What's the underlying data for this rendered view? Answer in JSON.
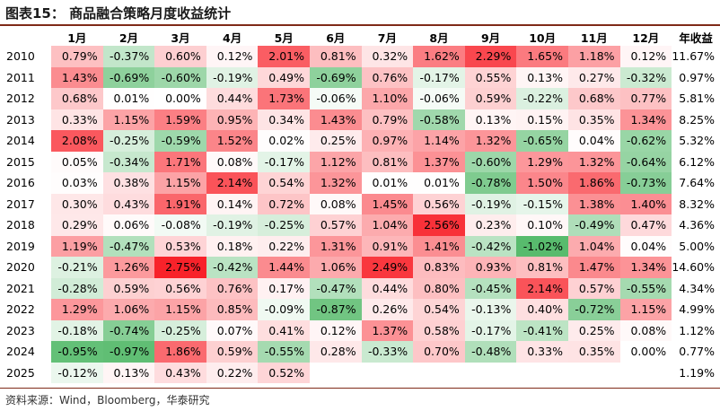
{
  "title": "图表15：  商品融合策略月度收益统计",
  "source": "资料来源：Wind，Bloomberg，华泰研究",
  "headers": [
    "1月",
    "2月",
    "3月",
    "4月",
    "5月",
    "6月",
    "7月",
    "8月",
    "9月",
    "10月",
    "11月",
    "12月",
    "年收益"
  ],
  "colors": {
    "negative": "#58bb6d",
    "neutral": "#ffffff",
    "positive": "#f8222a",
    "rule": "#7f2a18"
  },
  "rows": [
    {
      "year": "2010",
      "values": [
        "0.79%",
        "-0.37%",
        "0.60%",
        "0.12%",
        "2.01%",
        "0.81%",
        "0.32%",
        "1.62%",
        "2.29%",
        "1.65%",
        "1.18%",
        "0.12%"
      ],
      "annual": "11.67%"
    },
    {
      "year": "2011",
      "values": [
        "1.43%",
        "-0.69%",
        "-0.60%",
        "-0.19%",
        "0.49%",
        "-0.69%",
        "0.76%",
        "-0.17%",
        "0.55%",
        "0.13%",
        "0.27%",
        "-0.32%"
      ],
      "annual": "0.97%"
    },
    {
      "year": "2012",
      "values": [
        "0.68%",
        "0.01%",
        "0.00%",
        "0.44%",
        "1.73%",
        "-0.06%",
        "1.10%",
        "-0.06%",
        "0.59%",
        "-0.22%",
        "0.68%",
        "0.77%"
      ],
      "annual": "5.81%"
    },
    {
      "year": "2013",
      "values": [
        "0.33%",
        "1.15%",
        "1.59%",
        "0.95%",
        "0.34%",
        "1.43%",
        "0.79%",
        "-0.58%",
        "0.13%",
        "0.15%",
        "0.35%",
        "1.34%"
      ],
      "annual": "8.25%"
    },
    {
      "year": "2014",
      "values": [
        "2.08%",
        "-0.25%",
        "-0.59%",
        "1.52%",
        "0.02%",
        "0.25%",
        "0.97%",
        "1.14%",
        "1.32%",
        "-0.65%",
        "0.04%",
        "-0.62%"
      ],
      "annual": "5.32%"
    },
    {
      "year": "2015",
      "values": [
        "0.05%",
        "-0.34%",
        "1.71%",
        "0.08%",
        "-0.17%",
        "1.12%",
        "0.81%",
        "1.37%",
        "-0.60%",
        "1.29%",
        "1.32%",
        "-0.64%"
      ],
      "annual": "6.12%"
    },
    {
      "year": "2016",
      "values": [
        "0.03%",
        "0.38%",
        "1.15%",
        "2.14%",
        "0.54%",
        "1.32%",
        "0.01%",
        "0.01%",
        "-0.78%",
        "1.50%",
        "1.86%",
        "-0.73%"
      ],
      "annual": "7.64%"
    },
    {
      "year": "2017",
      "values": [
        "0.30%",
        "0.43%",
        "1.91%",
        "0.14%",
        "0.72%",
        "0.08%",
        "1.45%",
        "0.56%",
        "-0.19%",
        "-0.15%",
        "1.38%",
        "1.40%"
      ],
      "annual": "8.32%"
    },
    {
      "year": "2018",
      "values": [
        "0.29%",
        "0.06%",
        "-0.08%",
        "-0.19%",
        "-0.25%",
        "0.57%",
        "1.04%",
        "2.56%",
        "0.23%",
        "0.10%",
        "-0.49%",
        "0.47%"
      ],
      "annual": "4.36%"
    },
    {
      "year": "2019",
      "values": [
        "1.19%",
        "-0.47%",
        "0.53%",
        "0.18%",
        "0.22%",
        "1.31%",
        "0.91%",
        "1.41%",
        "-0.42%",
        "-1.02%",
        "1.04%",
        "0.04%"
      ],
      "annual": "5.00%"
    },
    {
      "year": "2020",
      "values": [
        "-0.21%",
        "1.26%",
        "2.75%",
        "-0.42%",
        "1.44%",
        "1.06%",
        "2.49%",
        "0.83%",
        "0.93%",
        "0.81%",
        "1.47%",
        "1.34%"
      ],
      "annual": "14.60%"
    },
    {
      "year": "2021",
      "values": [
        "-0.28%",
        "0.59%",
        "0.56%",
        "0.76%",
        "0.17%",
        "-0.47%",
        "0.44%",
        "0.80%",
        "-0.45%",
        "2.14%",
        "0.57%",
        "-0.55%"
      ],
      "annual": "4.34%"
    },
    {
      "year": "2022",
      "values": [
        "1.29%",
        "1.06%",
        "1.15%",
        "0.85%",
        "-0.09%",
        "-0.87%",
        "0.26%",
        "0.54%",
        "-0.13%",
        "0.40%",
        "-0.72%",
        "1.15%"
      ],
      "annual": "4.99%"
    },
    {
      "year": "2023",
      "values": [
        "-0.18%",
        "-0.74%",
        "-0.25%",
        "0.07%",
        "0.41%",
        "0.12%",
        "1.37%",
        "0.58%",
        "-0.17%",
        "-0.41%",
        "0.25%",
        "0.08%"
      ],
      "annual": "1.12%"
    },
    {
      "year": "2024",
      "values": [
        "-0.95%",
        "-0.97%",
        "1.86%",
        "0.59%",
        "-0.55%",
        "0.28%",
        "-0.33%",
        "0.70%",
        "-0.48%",
        "0.33%",
        "0.35%",
        "0.00%"
      ],
      "annual": "0.77%"
    },
    {
      "year": "2025",
      "values": [
        "-0.12%",
        "0.13%",
        "0.43%",
        "0.22%",
        "0.52%",
        "",
        "",
        "",
        "",
        "",
        "",
        ""
      ],
      "annual": "1.19%"
    }
  ]
}
